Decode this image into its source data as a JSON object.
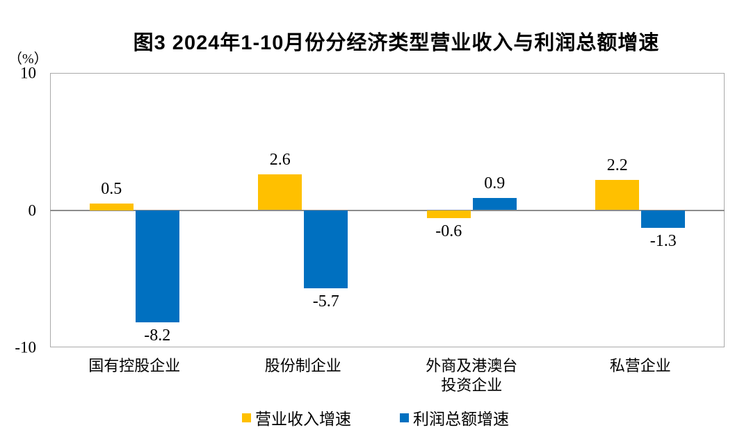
{
  "chart_data": {
    "type": "bar",
    "title": "图3 2024年1-10月份分经济类型营业收入与利润总额增速",
    "unit_label": "（%）",
    "categories": [
      "国有控股企业",
      "股份制企业",
      "外商及港澳台\n投资企业",
      "私营企业"
    ],
    "series": [
      {
        "name": "营业收入增速",
        "color": "#FFC000",
        "values": [
          0.5,
          2.6,
          -0.6,
          2.2
        ]
      },
      {
        "name": "利润总额增速",
        "color": "#0070C0",
        "values": [
          -8.2,
          -5.7,
          0.9,
          -1.3
        ]
      }
    ],
    "value_labels": [
      [
        "0.5",
        "2.6",
        "-0.6",
        "2.2"
      ],
      [
        "-8.2",
        "-5.7",
        "0.9",
        "-1.3"
      ]
    ],
    "ylim": [
      -10,
      10
    ],
    "yticks": [
      "10",
      "0",
      "-10"
    ],
    "ytick_values": [
      10,
      0,
      -10
    ],
    "grid": false,
    "legend_position": "bottom"
  },
  "colors": {
    "revenue_series": "#FFC000",
    "profit_series": "#0070C0",
    "frame": "#a9a9a9",
    "zero_line": "#8c8c8c",
    "text": "#000000",
    "background": "#ffffff"
  }
}
